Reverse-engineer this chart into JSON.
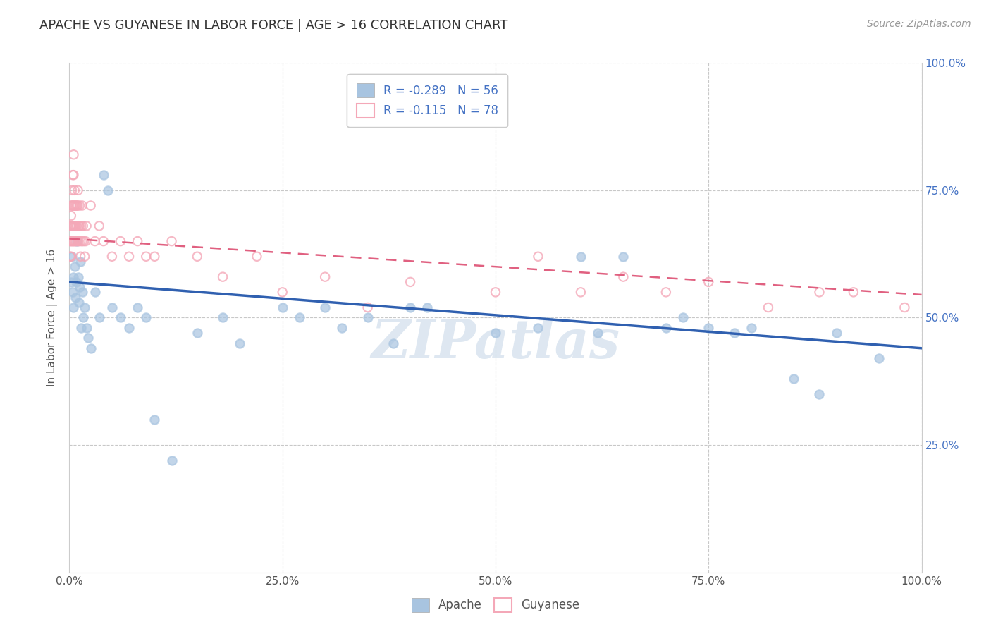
{
  "title": "APACHE VS GUYANESE IN LABOR FORCE | AGE > 16 CORRELATION CHART",
  "source_text": "Source: ZipAtlas.com",
  "ylabel": "In Labor Force | Age > 16",
  "apache_R": -0.289,
  "apache_N": 56,
  "guyanese_R": -0.115,
  "guyanese_N": 78,
  "apache_color": "#a8c4e0",
  "guyanese_color": "#f4a8b8",
  "apache_line_color": "#3060b0",
  "guyanese_line_color": "#e06080",
  "background_color": "#ffffff",
  "grid_color": "#c8c8c8",
  "watermark": "ZIPatlas",
  "xlim": [
    0.0,
    1.0
  ],
  "ylim": [
    0.0,
    1.0
  ],
  "right_yticks": [
    0.25,
    0.5,
    0.75,
    1.0
  ],
  "right_yticklabels": [
    "25.0%",
    "50.0%",
    "75.0%",
    "100.0%"
  ],
  "xticks": [
    0.0,
    0.25,
    0.5,
    0.75,
    1.0
  ],
  "xticklabels": [
    "0.0%",
    "25.0%",
    "50.0%",
    "75.0%",
    "100.0%"
  ],
  "apache_line_y0": 0.57,
  "apache_line_y1": 0.44,
  "guyanese_line_y0": 0.655,
  "guyanese_line_y1": 0.545,
  "apache_x": [
    0.002,
    0.003,
    0.004,
    0.005,
    0.005,
    0.006,
    0.007,
    0.008,
    0.009,
    0.01,
    0.011,
    0.012,
    0.013,
    0.014,
    0.015,
    0.016,
    0.018,
    0.02,
    0.022,
    0.025,
    0.03,
    0.035,
    0.04,
    0.045,
    0.05,
    0.06,
    0.07,
    0.08,
    0.09,
    0.1,
    0.12,
    0.15,
    0.18,
    0.2,
    0.25,
    0.27,
    0.3,
    0.32,
    0.35,
    0.38,
    0.4,
    0.42,
    0.5,
    0.55,
    0.6,
    0.62,
    0.65,
    0.7,
    0.72,
    0.75,
    0.78,
    0.8,
    0.85,
    0.88,
    0.9,
    0.95
  ],
  "apache_y": [
    0.57,
    0.62,
    0.55,
    0.58,
    0.52,
    0.6,
    0.54,
    0.57,
    0.65,
    0.58,
    0.53,
    0.56,
    0.61,
    0.48,
    0.55,
    0.5,
    0.52,
    0.48,
    0.46,
    0.44,
    0.55,
    0.5,
    0.78,
    0.75,
    0.52,
    0.5,
    0.48,
    0.52,
    0.5,
    0.3,
    0.22,
    0.47,
    0.5,
    0.45,
    0.52,
    0.5,
    0.52,
    0.48,
    0.5,
    0.45,
    0.52,
    0.52,
    0.47,
    0.48,
    0.62,
    0.47,
    0.62,
    0.48,
    0.5,
    0.48,
    0.47,
    0.48,
    0.38,
    0.35,
    0.47,
    0.42
  ],
  "guyanese_x": [
    0.001,
    0.001,
    0.001,
    0.002,
    0.002,
    0.002,
    0.002,
    0.002,
    0.003,
    0.003,
    0.003,
    0.003,
    0.004,
    0.004,
    0.004,
    0.004,
    0.005,
    0.005,
    0.005,
    0.005,
    0.005,
    0.006,
    0.006,
    0.006,
    0.006,
    0.007,
    0.007,
    0.007,
    0.008,
    0.008,
    0.008,
    0.009,
    0.009,
    0.01,
    0.01,
    0.01,
    0.011,
    0.011,
    0.012,
    0.012,
    0.013,
    0.013,
    0.014,
    0.015,
    0.015,
    0.016,
    0.017,
    0.018,
    0.019,
    0.02,
    0.025,
    0.03,
    0.035,
    0.04,
    0.05,
    0.06,
    0.07,
    0.08,
    0.09,
    0.1,
    0.12,
    0.15,
    0.18,
    0.22,
    0.25,
    0.3,
    0.35,
    0.4,
    0.5,
    0.55,
    0.6,
    0.65,
    0.7,
    0.75,
    0.82,
    0.88,
    0.92,
    0.98
  ],
  "guyanese_y": [
    0.65,
    0.68,
    0.62,
    0.72,
    0.68,
    0.65,
    0.62,
    0.7,
    0.75,
    0.72,
    0.68,
    0.65,
    0.78,
    0.72,
    0.68,
    0.65,
    0.82,
    0.78,
    0.72,
    0.68,
    0.65,
    0.75,
    0.72,
    0.68,
    0.65,
    0.72,
    0.68,
    0.65,
    0.72,
    0.68,
    0.65,
    0.72,
    0.68,
    0.75,
    0.72,
    0.65,
    0.68,
    0.65,
    0.72,
    0.68,
    0.65,
    0.62,
    0.68,
    0.72,
    0.65,
    0.68,
    0.65,
    0.62,
    0.65,
    0.68,
    0.72,
    0.65,
    0.68,
    0.65,
    0.62,
    0.65,
    0.62,
    0.65,
    0.62,
    0.62,
    0.65,
    0.62,
    0.58,
    0.62,
    0.55,
    0.58,
    0.52,
    0.57,
    0.55,
    0.62,
    0.55,
    0.58,
    0.55,
    0.57,
    0.52,
    0.55,
    0.55,
    0.52
  ]
}
